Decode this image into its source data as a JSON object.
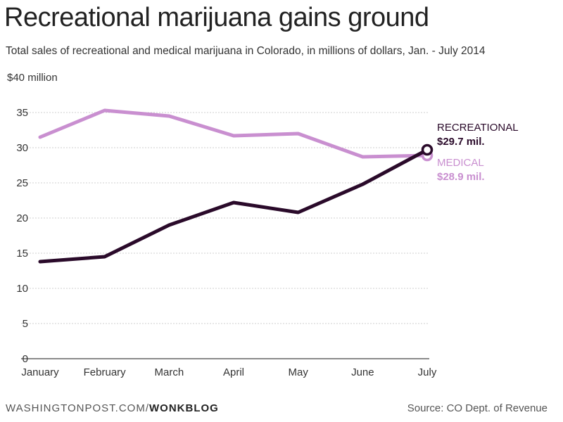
{
  "chart_data": {
    "type": "line",
    "title": "Recreational marijuana gains ground",
    "subtitle": "Total sales of recreational and medical marijuana in Colorado, in millions of dollars, Jan. - July 2014",
    "categories": [
      "January",
      "February",
      "March",
      "April",
      "May",
      "June",
      "July"
    ],
    "y_ticks": [
      "0",
      "5",
      "10",
      "15",
      "20",
      "25",
      "30",
      "35",
      "$40 million"
    ],
    "ylim": [
      0,
      40
    ],
    "grid": true,
    "series": [
      {
        "name": "MEDICAL",
        "values": [
          31.5,
          35.3,
          34.5,
          31.7,
          32.0,
          28.7,
          28.9
        ],
        "color": "#c98fd0",
        "end_label": "$28.9 mil."
      },
      {
        "name": "RECREATIONAL",
        "values": [
          13.8,
          14.5,
          19.0,
          22.2,
          20.8,
          24.8,
          29.7
        ],
        "color": "#2a0a2a",
        "end_label": "$29.7 mil."
      }
    ]
  },
  "footer": {
    "source_site": "WASHINGTONPOST.COM/",
    "source_brand": "WONKBLOG",
    "credit": "Source: CO Dept. of Revenue"
  }
}
